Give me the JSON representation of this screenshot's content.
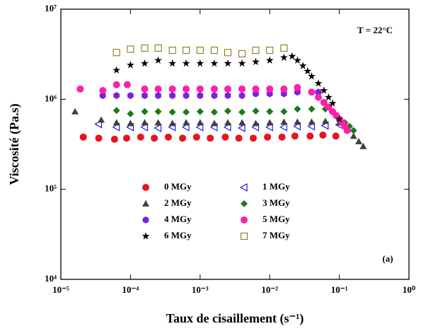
{
  "chart_data": {
    "type": "scatter",
    "x_label": "Taux de cisaillement (s⁻¹)",
    "y_label": "Viscosité (Pa.s)",
    "annotations": [
      "T = 22°C",
      "(a)"
    ],
    "xscale": "log",
    "yscale": "log",
    "xlim": [
      1e-05,
      1
    ],
    "ylim": [
      10000,
      10000000
    ],
    "xticks": [
      {
        "value": 1e-05,
        "label": "10⁻⁵"
      },
      {
        "value": 0.0001,
        "label": "10⁻⁴"
      },
      {
        "value": 0.001,
        "label": "10⁻³"
      },
      {
        "value": 0.01,
        "label": "10⁻²"
      },
      {
        "value": 0.1,
        "label": "10⁻¹"
      },
      {
        "value": 1,
        "label": "10⁰"
      }
    ],
    "yticks": [
      {
        "value": 10000,
        "label": "10⁴"
      },
      {
        "value": 100000,
        "label": "10⁵"
      },
      {
        "value": 1000000,
        "label": "10⁶"
      },
      {
        "value": 10000000,
        "label": "10⁷"
      }
    ],
    "legend": "lower center",
    "series": [
      {
        "name": "0 MGy",
        "color": "#e8141e",
        "marker": "circle",
        "x": [
          2.1e-05,
          3.5e-05,
          5.9e-05,
          8.8e-05,
          0.00014,
          0.00022,
          0.00035,
          0.00056,
          0.00089,
          0.0014,
          0.0023,
          0.0036,
          0.0058,
          0.0093,
          0.015,
          0.023,
          0.038,
          0.058,
          0.089
        ],
        "values": [
          380000,
          370000,
          360000,
          370000,
          380000,
          370000,
          380000,
          370000,
          380000,
          370000,
          380000,
          370000,
          370000,
          380000,
          380000,
          390000,
          390000,
          400000,
          390000
        ]
      },
      {
        "name": "1 MGy",
        "color": "#1e1ee6",
        "marker": "open-triangle-left",
        "x": [
          3.5e-05,
          6.3e-05,
          0.0001,
          0.00016,
          0.00025,
          0.0004,
          0.00063,
          0.001,
          0.0016,
          0.0025,
          0.004,
          0.0063,
          0.01,
          0.016,
          0.025,
          0.04,
          0.063,
          0.1
        ],
        "values": [
          530000,
          490000,
          490000,
          490000,
          480000,
          490000,
          490000,
          490000,
          490000,
          490000,
          480000,
          490000,
          490000,
          490000,
          500000,
          500000,
          510000,
          520000
        ]
      },
      {
        "name": "2 MGy",
        "color": "#404040",
        "marker": "triangle-up",
        "x": [
          1.6e-05,
          3.8e-05,
          6.3e-05,
          0.0001,
          0.00016,
          0.00025,
          0.0004,
          0.00063,
          0.001,
          0.0016,
          0.0025,
          0.004,
          0.0063,
          0.01,
          0.016,
          0.025,
          0.04,
          0.063,
          0.1,
          0.13,
          0.16,
          0.19,
          0.22
        ],
        "values": [
          730000,
          590000,
          550000,
          540000,
          550000,
          550000,
          540000,
          550000,
          550000,
          540000,
          550000,
          550000,
          540000,
          550000,
          560000,
          560000,
          560000,
          570000,
          550000,
          460000,
          390000,
          340000,
          300000
        ]
      },
      {
        "name": "3 MGy",
        "color": "#1a7a1a",
        "marker": "diamond",
        "x": [
          6.3e-05,
          0.0001,
          0.00016,
          0.00025,
          0.0004,
          0.00063,
          0.001,
          0.0016,
          0.0025,
          0.004,
          0.0063,
          0.01,
          0.016,
          0.025,
          0.04,
          0.063,
          0.12,
          0.14,
          0.16
        ],
        "values": [
          750000,
          690000,
          730000,
          730000,
          720000,
          720000,
          730000,
          720000,
          740000,
          720000,
          740000,
          730000,
          730000,
          780000,
          780000,
          780000,
          550000,
          500000,
          450000
        ]
      },
      {
        "name": "4 MGy",
        "color": "#7b1fe0",
        "marker": "hexagon",
        "x": [
          4e-05,
          6.3e-05,
          0.0001,
          0.00016,
          0.00025,
          0.0004,
          0.00063,
          0.001,
          0.0016,
          0.0025,
          0.004,
          0.0063,
          0.01,
          0.016,
          0.025,
          0.05
        ],
        "values": [
          1100000,
          1100000,
          1100000,
          1100000,
          1100000,
          1100000,
          1100000,
          1100000,
          1100000,
          1100000,
          1100000,
          1150000,
          1150000,
          1150000,
          1200000,
          1200000
        ]
      },
      {
        "name": "5 MGy",
        "color": "#ff1fa8",
        "marker": "circle",
        "x": [
          1.9e-05,
          4e-05,
          6.3e-05,
          9e-05,
          0.00016,
          0.00025,
          0.0004,
          0.00063,
          0.001,
          0.0016,
          0.0025,
          0.004,
          0.0063,
          0.01,
          0.016,
          0.025,
          0.04,
          0.05,
          0.06,
          0.07,
          0.08,
          0.09,
          0.1,
          0.11,
          0.12,
          0.13
        ],
        "values": [
          1300000,
          1250000,
          1450000,
          1450000,
          1300000,
          1300000,
          1300000,
          1300000,
          1300000,
          1300000,
          1300000,
          1300000,
          1300000,
          1300000,
          1300000,
          1350000,
          1200000,
          1050000,
          920000,
          820000,
          730000,
          660000,
          600000,
          550000,
          500000,
          450000
        ]
      },
      {
        "name": "6 MGy",
        "color": "#000000",
        "marker": "star",
        "x": [
          6.3e-05,
          0.0001,
          0.00016,
          0.00025,
          0.0004,
          0.00063,
          0.001,
          0.0016,
          0.0025,
          0.004,
          0.0063,
          0.01,
          0.016,
          0.021,
          0.025,
          0.03,
          0.035,
          0.04,
          0.05,
          0.06,
          0.07,
          0.08,
          0.1
        ],
        "values": [
          2100000,
          2400000,
          2500000,
          2700000,
          2500000,
          2500000,
          2500000,
          2500000,
          2500000,
          2500000,
          2600000,
          2700000,
          2900000,
          3000000,
          2700000,
          2350000,
          2050000,
          1800000,
          1500000,
          1250000,
          1050000,
          900000,
          600000
        ]
      },
      {
        "name": "7 MGy",
        "color": "#8a7a1a",
        "marker": "open-square",
        "x": [
          6.3e-05,
          0.0001,
          0.00016,
          0.00025,
          0.0004,
          0.00063,
          0.001,
          0.0016,
          0.0025,
          0.004,
          0.0063,
          0.01,
          0.016
        ],
        "values": [
          3300000,
          3600000,
          3700000,
          3700000,
          3500000,
          3500000,
          3500000,
          3500000,
          3300000,
          3200000,
          3500000,
          3500000,
          3700000
        ]
      }
    ]
  }
}
